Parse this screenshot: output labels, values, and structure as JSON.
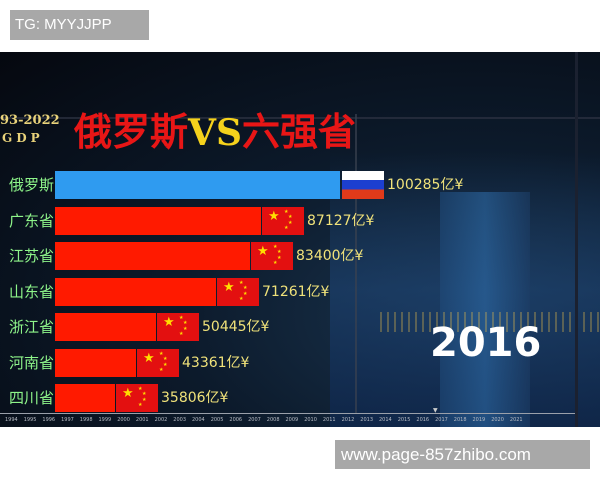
{
  "watermark_top": "TG: MYYJJPP",
  "watermark_bottom": "www.page-857zhibo.com",
  "chart_data": {
    "type": "bar",
    "orientation": "horizontal",
    "title": "俄罗斯VS六强省",
    "title_parts": [
      "俄罗斯",
      "VS",
      "六强省"
    ],
    "subtitle": "93-2022",
    "subtitle2": "GDP",
    "current_year": "2016",
    "unit": "亿¥",
    "categories": [
      "俄罗斯",
      "广东省",
      "江苏省",
      "山东省",
      "浙江省",
      "河南省",
      "四川省"
    ],
    "values": [
      100285,
      87127,
      83400,
      71261,
      50445,
      43361,
      35806
    ],
    "value_labels": [
      "100285亿¥",
      "87127亿¥",
      "83400亿¥",
      "71261亿¥",
      "50445亿¥",
      "43361亿¥",
      "35806亿¥"
    ],
    "flags": [
      "russia-flag",
      "china-flag",
      "china-flag",
      "china-flag",
      "china-flag",
      "china-flag",
      "china-flag"
    ],
    "colors": [
      "#2f9bf0",
      "#ff1a00",
      "#ff1a00",
      "#ff1a00",
      "#ff1a00",
      "#ff1a00",
      "#ff1a00"
    ],
    "timeline_years": [
      "1994",
      "1995",
      "1996",
      "1997",
      "1998",
      "1999",
      "2000",
      "2001",
      "2002",
      "2003",
      "2004",
      "2005",
      "2006",
      "2007",
      "2008",
      "2009",
      "2010",
      "2011",
      "2012",
      "2013",
      "2014",
      "2015",
      "2016",
      "2017",
      "2018",
      "2019",
      "2020",
      "2021"
    ],
    "grid": false,
    "legend": "none"
  }
}
